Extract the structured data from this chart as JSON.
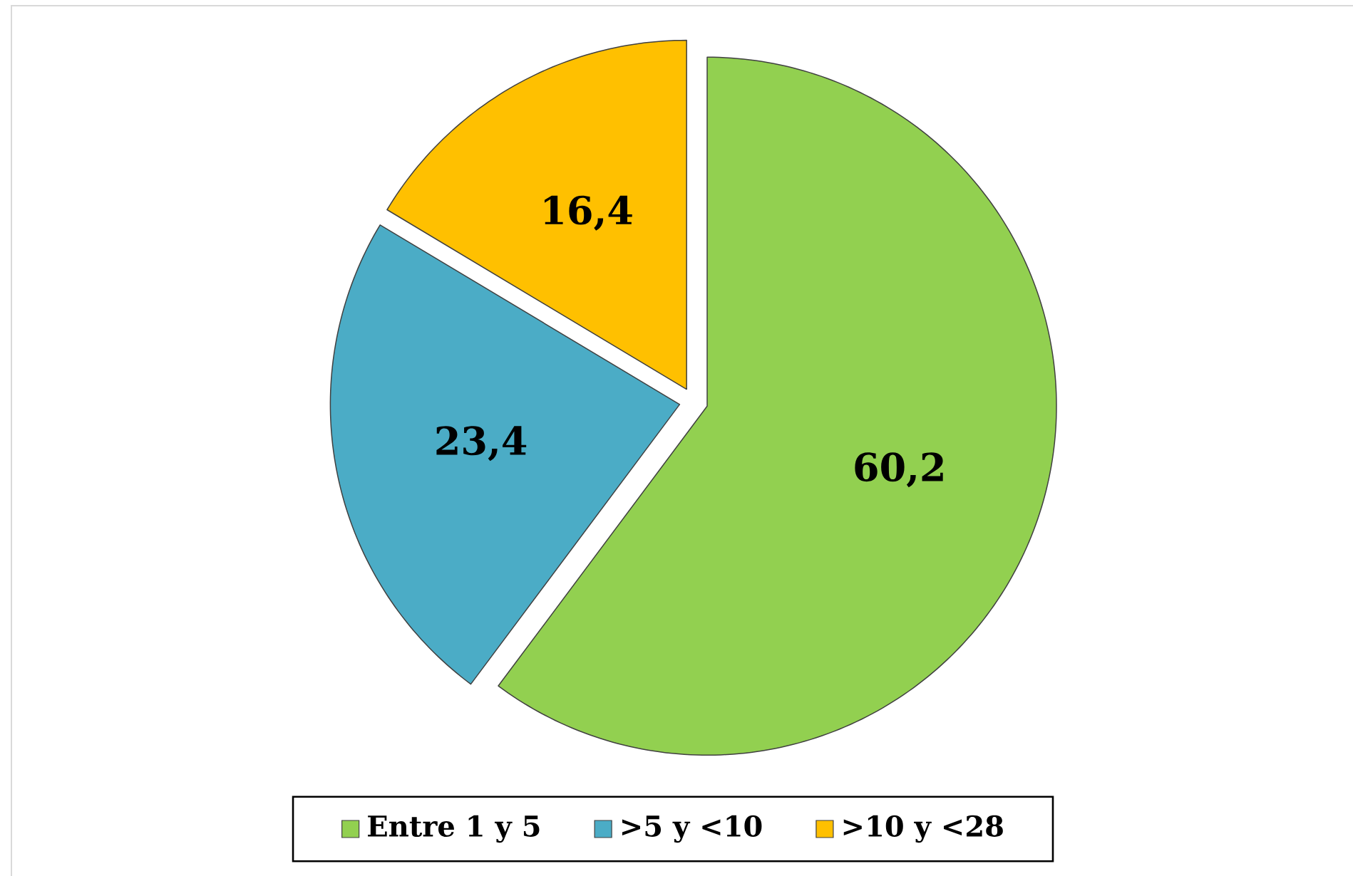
{
  "chart_data": {
    "type": "pie",
    "categories": [
      "Entre 1 y 5",
      ">5 y <10",
      ">10 y <28"
    ],
    "values": [
      60.2,
      23.4,
      16.4
    ],
    "colors": [
      "#92d050",
      "#4bacc6",
      "#ffc000"
    ],
    "value_labels": [
      "60,2",
      "23,4",
      "16,4"
    ],
    "legend": "bottom"
  }
}
